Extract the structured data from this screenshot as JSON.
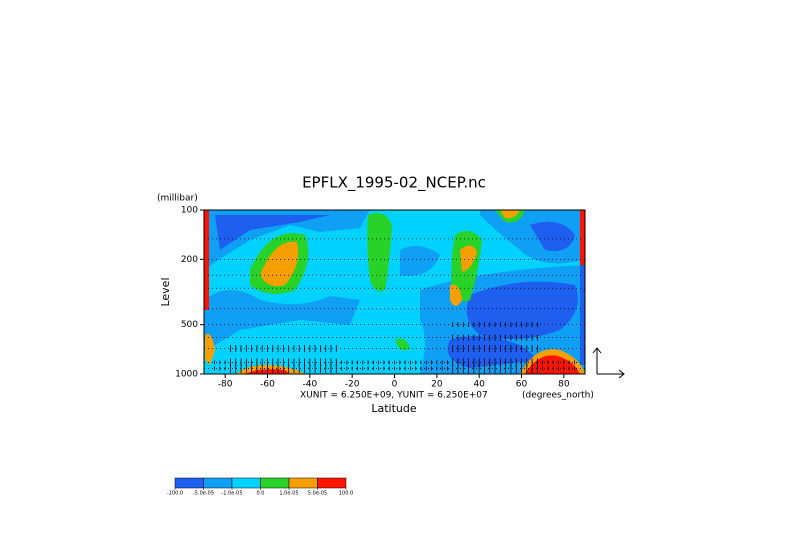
{
  "chart_data": {
    "type": "contour",
    "title": "EPFLX_1995-02_NCEP.nc",
    "y_unit_label": "(millibar)",
    "y_label": "Level",
    "x_label": "Latitude",
    "x_unit_label": "(degrees_north)",
    "vector_scale_label": "XUNIT = 6.250E+09, YUNIT = 6.250E+07",
    "xlim": [
      -90,
      90
    ],
    "xticks": [
      -80,
      -60,
      -40,
      -20,
      0,
      20,
      40,
      60,
      80
    ],
    "ylim": [
      1000,
      100
    ],
    "y_log": true,
    "yticks": [
      100,
      200,
      500,
      1000
    ],
    "colorbar": {
      "colors": [
        "#1e5ff0",
        "#0fa0f5",
        "#00d2ff",
        "#28d228",
        "#f5a000",
        "#ff1400"
      ],
      "labels": [
        {
          "value": -100,
          "label": "-100.0"
        },
        {
          "value": -5e-05,
          "label": "-5.0e-05"
        },
        {
          "value": -1e-05,
          "label": "-1.0e-05"
        },
        {
          "value": 0,
          "label": "0.0"
        },
        {
          "value": 1e-05,
          "label": "1.0e-05"
        },
        {
          "value": 5e-05,
          "label": "5.0e-05"
        },
        {
          "value": 100,
          "label": "100.0"
        }
      ]
    }
  }
}
